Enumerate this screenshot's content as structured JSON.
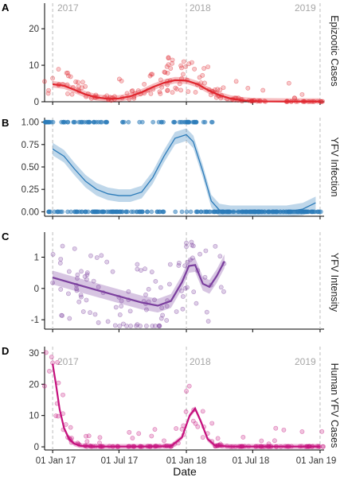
{
  "chart_data": [
    {
      "panel": "A",
      "type": "scatter",
      "ylabel": "Epizootic Cases",
      "ylim": [
        0,
        27
      ],
      "yticks": [
        0,
        10,
        20
      ],
      "year_labels": [
        "2017",
        "2018",
        "2019"
      ],
      "color": "#e0262e",
      "smooth": [
        {
          "x": "2017-01-01",
          "y": 4.8
        },
        {
          "x": "2017-02-01",
          "y": 4.4
        },
        {
          "x": "2017-03-01",
          "y": 3.3
        },
        {
          "x": "2017-04-01",
          "y": 2.0
        },
        {
          "x": "2017-05-01",
          "y": 1.2
        },
        {
          "x": "2017-06-01",
          "y": 0.8
        },
        {
          "x": "2017-07-01",
          "y": 0.9
        },
        {
          "x": "2017-08-01",
          "y": 1.5
        },
        {
          "x": "2017-09-01",
          "y": 2.6
        },
        {
          "x": "2017-10-01",
          "y": 4.0
        },
        {
          "x": "2017-11-01",
          "y": 5.2
        },
        {
          "x": "2017-12-01",
          "y": 5.9
        },
        {
          "x": "2018-01-01",
          "y": 5.8
        },
        {
          "x": "2018-02-01",
          "y": 4.8
        },
        {
          "x": "2018-03-01",
          "y": 3.2
        },
        {
          "x": "2018-04-01",
          "y": 1.8
        },
        {
          "x": "2018-05-01",
          "y": 0.9
        },
        {
          "x": "2018-06-01",
          "y": 0.4
        },
        {
          "x": "2018-07-01",
          "y": 0.2
        },
        {
          "x": "2018-08-01",
          "y": 0.1
        },
        {
          "x": "2018-10-01",
          "y": 0.05
        },
        {
          "x": "2019-01-01",
          "y": 0.05
        }
      ],
      "band_halfwidth": 0.9
    },
    {
      "panel": "B",
      "type": "scatter",
      "ylabel": "YFV Infection",
      "ylim": [
        -0.05,
        1.05
      ],
      "yticks": [
        "0.00",
        "0.25",
        "0.50",
        "0.75",
        "1.00"
      ],
      "color": "#2b7bb9",
      "smooth": [
        {
          "x": "2017-01-01",
          "y": 0.7
        },
        {
          "x": "2017-02-01",
          "y": 0.62
        },
        {
          "x": "2017-03-01",
          "y": 0.48
        },
        {
          "x": "2017-04-01",
          "y": 0.34
        },
        {
          "x": "2017-05-01",
          "y": 0.25
        },
        {
          "x": "2017-06-01",
          "y": 0.2
        },
        {
          "x": "2017-07-01",
          "y": 0.18
        },
        {
          "x": "2017-08-01",
          "y": 0.18
        },
        {
          "x": "2017-09-01",
          "y": 0.22
        },
        {
          "x": "2017-10-01",
          "y": 0.38
        },
        {
          "x": "2017-11-01",
          "y": 0.62
        },
        {
          "x": "2017-12-01",
          "y": 0.82
        },
        {
          "x": "2018-01-01",
          "y": 0.86
        },
        {
          "x": "2018-01-20",
          "y": 0.78
        },
        {
          "x": "2018-02-15",
          "y": 0.45
        },
        {
          "x": "2018-03-10",
          "y": 0.12
        },
        {
          "x": "2018-04-01",
          "y": 0.02
        },
        {
          "x": "2018-05-01",
          "y": 0.0
        },
        {
          "x": "2018-08-01",
          "y": 0.0
        },
        {
          "x": "2018-10-01",
          "y": 0.0
        },
        {
          "x": "2018-11-15",
          "y": 0.03
        },
        {
          "x": "2018-12-20",
          "y": 0.1
        }
      ],
      "band_halfwidth": 0.07
    },
    {
      "panel": "C",
      "type": "scatter",
      "ylabel": "YFV Intensity",
      "ylim": [
        -1.3,
        1.8
      ],
      "yticks": [
        -1,
        0,
        1
      ],
      "color": "#7b3f9e",
      "smooth": [
        {
          "x": "2017-01-01",
          "y": 0.35
        },
        {
          "x": "2017-03-01",
          "y": 0.15
        },
        {
          "x": "2017-05-01",
          "y": -0.05
        },
        {
          "x": "2017-07-01",
          "y": -0.25
        },
        {
          "x": "2017-09-01",
          "y": -0.45
        },
        {
          "x": "2017-10-15",
          "y": -0.55
        },
        {
          "x": "2017-11-20",
          "y": -0.4
        },
        {
          "x": "2017-12-20",
          "y": 0.2
        },
        {
          "x": "2018-01-08",
          "y": 0.72
        },
        {
          "x": "2018-01-25",
          "y": 0.75
        },
        {
          "x": "2018-02-15",
          "y": 0.15
        },
        {
          "x": "2018-03-05",
          "y": 0.05
        },
        {
          "x": "2018-03-25",
          "y": 0.4
        },
        {
          "x": "2018-04-15",
          "y": 0.87
        }
      ],
      "band_halfwidth": 0.22
    },
    {
      "panel": "D",
      "type": "scatter",
      "ylabel": "Human YFV Cases",
      "ylim": [
        -1,
        32
      ],
      "yticks": [
        0,
        10,
        20,
        30
      ],
      "year_labels": [
        "2017",
        "2018",
        "2019"
      ],
      "color": "#c5117d",
      "smooth": [
        {
          "x": "2017-01-01",
          "y": 26.5
        },
        {
          "x": "2017-01-10",
          "y": 20
        },
        {
          "x": "2017-01-20",
          "y": 12
        },
        {
          "x": "2017-02-01",
          "y": 6
        },
        {
          "x": "2017-02-15",
          "y": 2.5
        },
        {
          "x": "2017-03-01",
          "y": 1
        },
        {
          "x": "2017-03-20",
          "y": 0.3
        },
        {
          "x": "2017-05-01",
          "y": 0.1
        },
        {
          "x": "2017-09-01",
          "y": 0.1
        },
        {
          "x": "2017-11-20",
          "y": 0.2
        },
        {
          "x": "2017-12-20",
          "y": 3
        },
        {
          "x": "2018-01-10",
          "y": 10
        },
        {
          "x": "2018-01-25",
          "y": 12.2
        },
        {
          "x": "2018-02-10",
          "y": 8
        },
        {
          "x": "2018-02-28",
          "y": 2.5
        },
        {
          "x": "2018-03-20",
          "y": 0.4
        },
        {
          "x": "2018-05-01",
          "y": 0.1
        },
        {
          "x": "2019-01-01",
          "y": 0.1
        }
      ],
      "band_halfwidth": 0.8
    }
  ],
  "x_axis": {
    "label": "Date",
    "range": [
      "2016-12-10",
      "2019-01-12"
    ],
    "tick_dates": [
      "2017-01-01",
      "2017-07-01",
      "2018-01-01",
      "2018-07-01",
      "2019-01-01"
    ],
    "tick_labels": [
      "01 Jan 17",
      "01 Jul 17",
      "01 Jan 18",
      "01 Jul 18",
      "01 Jan 19"
    ],
    "year_lines": [
      "2017-01-01",
      "2018-01-01",
      "2019-01-01"
    ]
  }
}
